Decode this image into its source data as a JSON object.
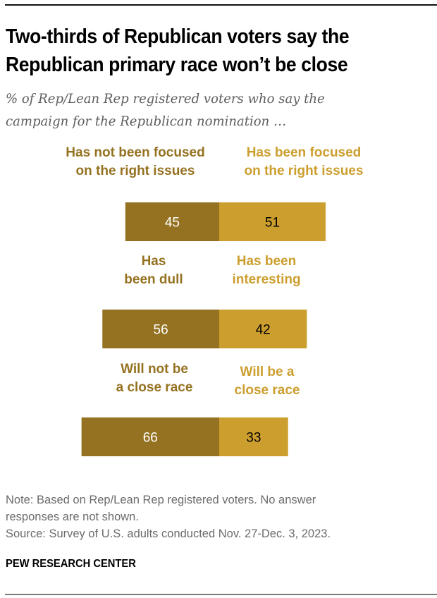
{
  "title_lines": [
    "Two-thirds of Republican voters say the",
    "Republican primary race won’t be close"
  ],
  "subtitle_lines": [
    "% of Rep/Lean Rep registered voters who say the",
    "campaign for the Republican nomination …"
  ],
  "colors": {
    "negative": "#957221",
    "positive": "#CC9E2E",
    "negative_label": "#957221",
    "positive_label": "#CC9E2E",
    "negative_value_text": "#ffffff",
    "positive_value_text": "#000000"
  },
  "chart_data": {
    "type": "bar",
    "orientation": "horizontal-diverging",
    "title": "Two-thirds of Republican voters say the Republican primary race won’t be close",
    "subtitle": "% of Rep/Lean Rep registered voters who say the campaign for the Republican nomination …",
    "xlim": [
      0,
      100
    ],
    "grid": false,
    "rows": [
      {
        "negative": {
          "label_lines": [
            "Has not been focused",
            "on the right issues"
          ],
          "value": 45
        },
        "positive": {
          "label_lines": [
            "Has been focused",
            "on the right issues"
          ],
          "value": 51
        }
      },
      {
        "negative": {
          "label_lines": [
            "Has",
            "been dull"
          ],
          "value": 56
        },
        "positive": {
          "label_lines": [
            "Has been",
            "interesting"
          ],
          "value": 42
        }
      },
      {
        "negative": {
          "label_lines": [
            "Will not be",
            "a close race"
          ],
          "value": 66
        },
        "positive": {
          "label_lines": [
            "Will be a",
            "close race"
          ],
          "value": 33
        }
      }
    ]
  },
  "note_lines": [
    "Note: Based on Rep/Lean Rep registered voters. No answer",
    "responses are not shown.",
    "Source: Survey of U.S. adults conducted Nov. 27-Dec. 3, 2023."
  ],
  "brand": "PEW RESEARCH CENTER"
}
